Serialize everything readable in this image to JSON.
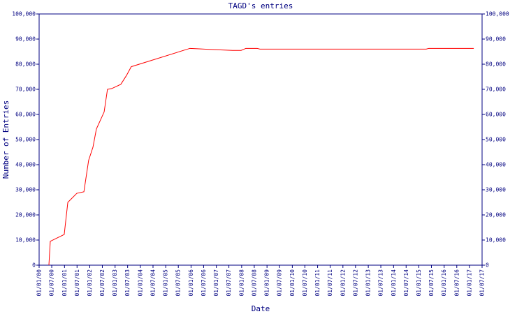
{
  "chart_data": {
    "type": "line",
    "title": "TAGD's entries",
    "x_label": "Date",
    "y_label": "Number of Entries",
    "x": [
      "2000-05-21",
      "2000-06-10",
      "2000-12-28",
      "2001-02-18",
      "2001-06-28",
      "2001-10-08",
      "2001-12-15",
      "2002-02-16",
      "2002-04-06",
      "2002-07-27",
      "2002-09-13",
      "2002-11-14",
      "2003-03-25",
      "2003-06-14",
      "2003-08-22",
      "2005-12-16",
      "2006-04-26",
      "2006-12-04",
      "2007-08-24",
      "2007-12-24",
      "2008-03-03",
      "2008-08-11",
      "2008-09-20",
      "2015-04-16",
      "2015-05-26",
      "2017-03-03"
    ],
    "series": [
      {
        "color": "#ff0000",
        "values": [
          0,
          9500,
          12200,
          25000,
          28600,
          29200,
          41700,
          47000,
          54200,
          61000,
          70000,
          70300,
          72000,
          75500,
          79000,
          86300,
          86100,
          85800,
          85500,
          85500,
          86300,
          86300,
          86000,
          86000,
          86300,
          86300
        ]
      }
    ],
    "xlim": [
      "2000-01-01",
      "2017-07-01"
    ],
    "xticks": [
      {
        "value": "2000-01-01",
        "label": "01/01/00"
      },
      {
        "value": "2000-07-01",
        "label": "01/07/00"
      },
      {
        "value": "2001-01-01",
        "label": "01/01/01"
      },
      {
        "value": "2001-07-01",
        "label": "01/07/01"
      },
      {
        "value": "2002-01-01",
        "label": "01/01/02"
      },
      {
        "value": "2002-07-01",
        "label": "01/07/02"
      },
      {
        "value": "2003-01-01",
        "label": "01/01/03"
      },
      {
        "value": "2003-07-01",
        "label": "01/07/03"
      },
      {
        "value": "2004-01-01",
        "label": "01/01/04"
      },
      {
        "value": "2004-07-01",
        "label": "01/07/04"
      },
      {
        "value": "2005-01-01",
        "label": "01/01/05"
      },
      {
        "value": "2005-07-01",
        "label": "01/07/05"
      },
      {
        "value": "2006-01-01",
        "label": "01/01/06"
      },
      {
        "value": "2006-07-01",
        "label": "01/07/06"
      },
      {
        "value": "2007-01-01",
        "label": "01/01/07"
      },
      {
        "value": "2007-07-01",
        "label": "01/07/07"
      },
      {
        "value": "2008-01-01",
        "label": "01/01/08"
      },
      {
        "value": "2008-07-01",
        "label": "01/07/08"
      },
      {
        "value": "2009-01-01",
        "label": "01/01/09"
      },
      {
        "value": "2009-07-01",
        "label": "01/07/09"
      },
      {
        "value": "2010-01-01",
        "label": "01/01/10"
      },
      {
        "value": "2010-07-01",
        "label": "01/07/10"
      },
      {
        "value": "2011-01-01",
        "label": "01/01/11"
      },
      {
        "value": "2011-07-01",
        "label": "01/07/11"
      },
      {
        "value": "2012-01-01",
        "label": "01/01/12"
      },
      {
        "value": "2012-07-01",
        "label": "01/07/12"
      },
      {
        "value": "2013-01-01",
        "label": "01/01/13"
      },
      {
        "value": "2013-07-01",
        "label": "01/07/13"
      },
      {
        "value": "2014-01-01",
        "label": "01/01/14"
      },
      {
        "value": "2014-07-01",
        "label": "01/07/14"
      },
      {
        "value": "2015-01-01",
        "label": "01/01/15"
      },
      {
        "value": "2015-07-01",
        "label": "01/07/15"
      },
      {
        "value": "2016-01-01",
        "label": "01/01/16"
      },
      {
        "value": "2016-07-01",
        "label": "01/07/16"
      },
      {
        "value": "2017-01-01",
        "label": "01/01/17"
      },
      {
        "value": "2017-07-01",
        "label": "01/07/17"
      }
    ],
    "ylim": [
      0,
      100000
    ],
    "yticks": [
      0,
      {
        "value": 10000,
        "label": "10,000"
      },
      {
        "value": 20000,
        "label": "20,000"
      },
      {
        "value": 30000,
        "label": "30,000"
      },
      {
        "value": 40000,
        "label": "40,000"
      },
      {
        "value": 50000,
        "label": "50,000"
      },
      {
        "value": 60000,
        "label": "60,000"
      },
      {
        "value": 70000,
        "label": "70,000"
      },
      {
        "value": 80000,
        "label": "80,000"
      },
      {
        "value": 90000,
        "label": "90,000"
      },
      {
        "value": 100000,
        "label": "100,000"
      }
    ],
    "axis_color": "#000080"
  }
}
